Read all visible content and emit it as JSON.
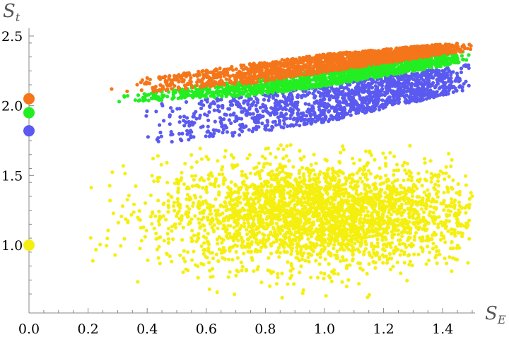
{
  "chart_data": {
    "type": "scatter",
    "title": "",
    "xlabel": {
      "main": "S",
      "sub": "E"
    },
    "ylabel": {
      "main": "S",
      "sub": "t"
    },
    "xlim": [
      0,
      1.5
    ],
    "ylim": [
      0.6,
      2.55
    ],
    "x_ticks": [
      0.0,
      0.2,
      0.4,
      0.6,
      0.8,
      1.0,
      1.2,
      1.4
    ],
    "x_tick_labels": [
      "0.0",
      "0.2",
      "0.4",
      "0.6",
      "0.8",
      "1.0",
      "1.2",
      "1.4"
    ],
    "y_ticks": [
      1.0,
      1.5,
      2.0,
      2.5
    ],
    "y_tick_labels": [
      "1.0",
      "1.5",
      "2.0",
      "2.5"
    ],
    "grid": false,
    "legend": "none",
    "reference_points": [
      {
        "x": 0.0,
        "y": 2.05,
        "color": "#f5761a"
      },
      {
        "x": 0.0,
        "y": 1.95,
        "color": "#22ee22"
      },
      {
        "x": 0.0,
        "y": 1.82,
        "color": "#5a5af0"
      },
      {
        "x": 0.0,
        "y": 1.0,
        "color": "#f5ef10"
      }
    ],
    "series": [
      {
        "color": "#f5ef10",
        "count": 3000,
        "center": [
          0.98,
          1.22
        ],
        "spread": [
          0.27,
          0.19
        ],
        "x_range": [
          0.2,
          1.5
        ],
        "y_range": [
          0.62,
          1.72
        ]
      },
      {
        "color": "#5a5af0",
        "count": 1400,
        "x_range": [
          0.3,
          1.5
        ],
        "band_low": [
          [
            0.35,
            1.7
          ],
          [
            0.75,
            1.8
          ],
          [
            1.0,
            1.88
          ],
          [
            1.5,
            2.12
          ]
        ],
        "band_high": [
          [
            0.35,
            2.0
          ],
          [
            0.75,
            2.08
          ],
          [
            1.0,
            2.15
          ],
          [
            1.5,
            2.3
          ]
        ]
      },
      {
        "color": "#22ee22",
        "count": 1600,
        "x_range": [
          0.23,
          1.5
        ],
        "band_low": [
          [
            0.23,
            2.02
          ],
          [
            0.75,
            2.07
          ],
          [
            1.0,
            2.14
          ],
          [
            1.5,
            2.32
          ]
        ],
        "band_high": [
          [
            0.23,
            2.07
          ],
          [
            0.75,
            2.18
          ],
          [
            1.0,
            2.26
          ],
          [
            1.5,
            2.42
          ]
        ]
      },
      {
        "color": "#f5761a",
        "count": 1800,
        "x_range": [
          0.23,
          1.5
        ],
        "band_low": [
          [
            0.23,
            2.07
          ],
          [
            0.75,
            2.16
          ],
          [
            1.0,
            2.24
          ],
          [
            1.5,
            2.4
          ]
        ],
        "band_high": [
          [
            0.23,
            2.15
          ],
          [
            0.75,
            2.3
          ],
          [
            1.0,
            2.37
          ],
          [
            1.5,
            2.46
          ]
        ]
      }
    ]
  }
}
